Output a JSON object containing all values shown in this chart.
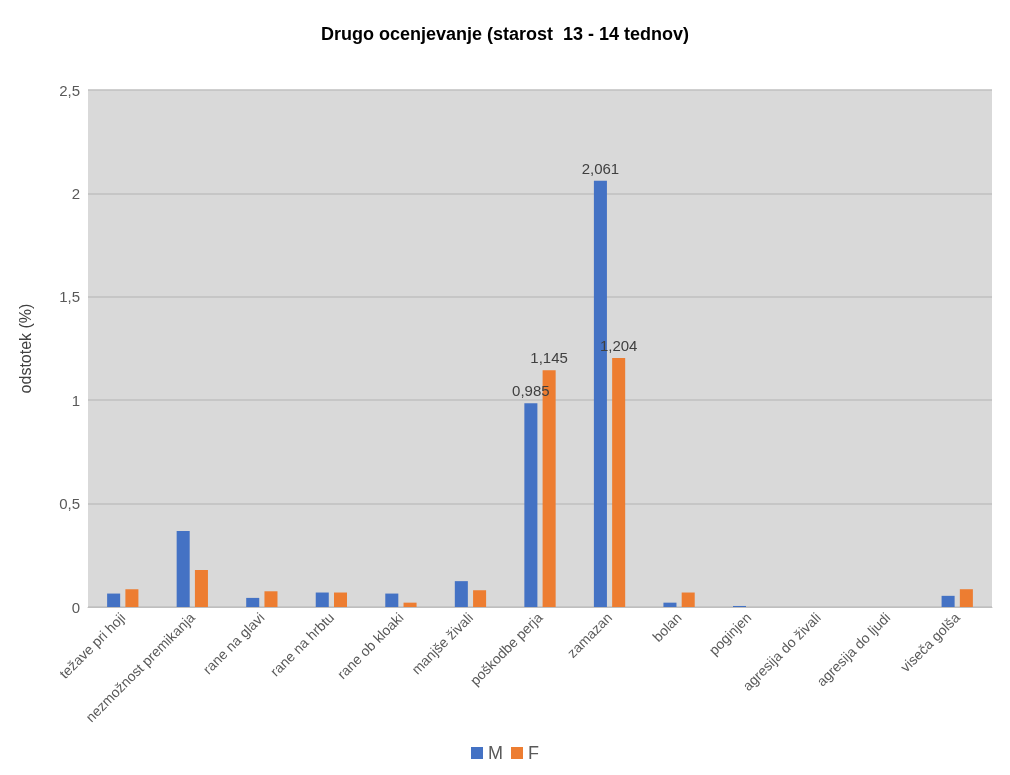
{
  "chart_data": {
    "type": "bar",
    "title": "Drugo ocenjevanje (starost  13 - 14 tednov)",
    "ylabel": "odstotek (%)",
    "categories": [
      "težave pri hoji",
      "nezmožnost premikanja",
      "rane na glavi",
      "rane na hrbtu",
      "rane ob kloaki",
      "manjše živali",
      "poškodbe perja",
      "zamazan",
      "bolan",
      "poginjen",
      "agresija do živali",
      "agresija do ljudi",
      "viseča golša"
    ],
    "series": [
      {
        "name": "M",
        "color": "#4472c4",
        "values": [
          0.065,
          0.367,
          0.044,
          0.07,
          0.065,
          0.125,
          0.985,
          2.061,
          0.021,
          0.005,
          0,
          0,
          0.054
        ],
        "value_labels": [
          null,
          null,
          null,
          null,
          null,
          null,
          "0,985",
          "2,061",
          null,
          null,
          null,
          null,
          null
        ]
      },
      {
        "name": "F",
        "color": "#ed7d31",
        "values": [
          0.086,
          0.179,
          0.076,
          0.07,
          0.021,
          0.081,
          1.145,
          1.204,
          0.07,
          0,
          0,
          0,
          0.086
        ],
        "value_labels": [
          null,
          null,
          null,
          null,
          null,
          null,
          "1,145",
          "1,204",
          null,
          null,
          null,
          null,
          null
        ]
      }
    ],
    "ylim": [
      0,
      2.5
    ],
    "yticks": [
      {
        "value": 0,
        "label": "0"
      },
      {
        "value": 0.5,
        "label": "0,5"
      },
      {
        "value": 1,
        "label": "1"
      },
      {
        "value": 1.5,
        "label": "1,5"
      },
      {
        "value": 2,
        "label": "2"
      },
      {
        "value": 2.5,
        "label": "2,5"
      }
    ],
    "grid": "y",
    "legend": "bottom"
  }
}
